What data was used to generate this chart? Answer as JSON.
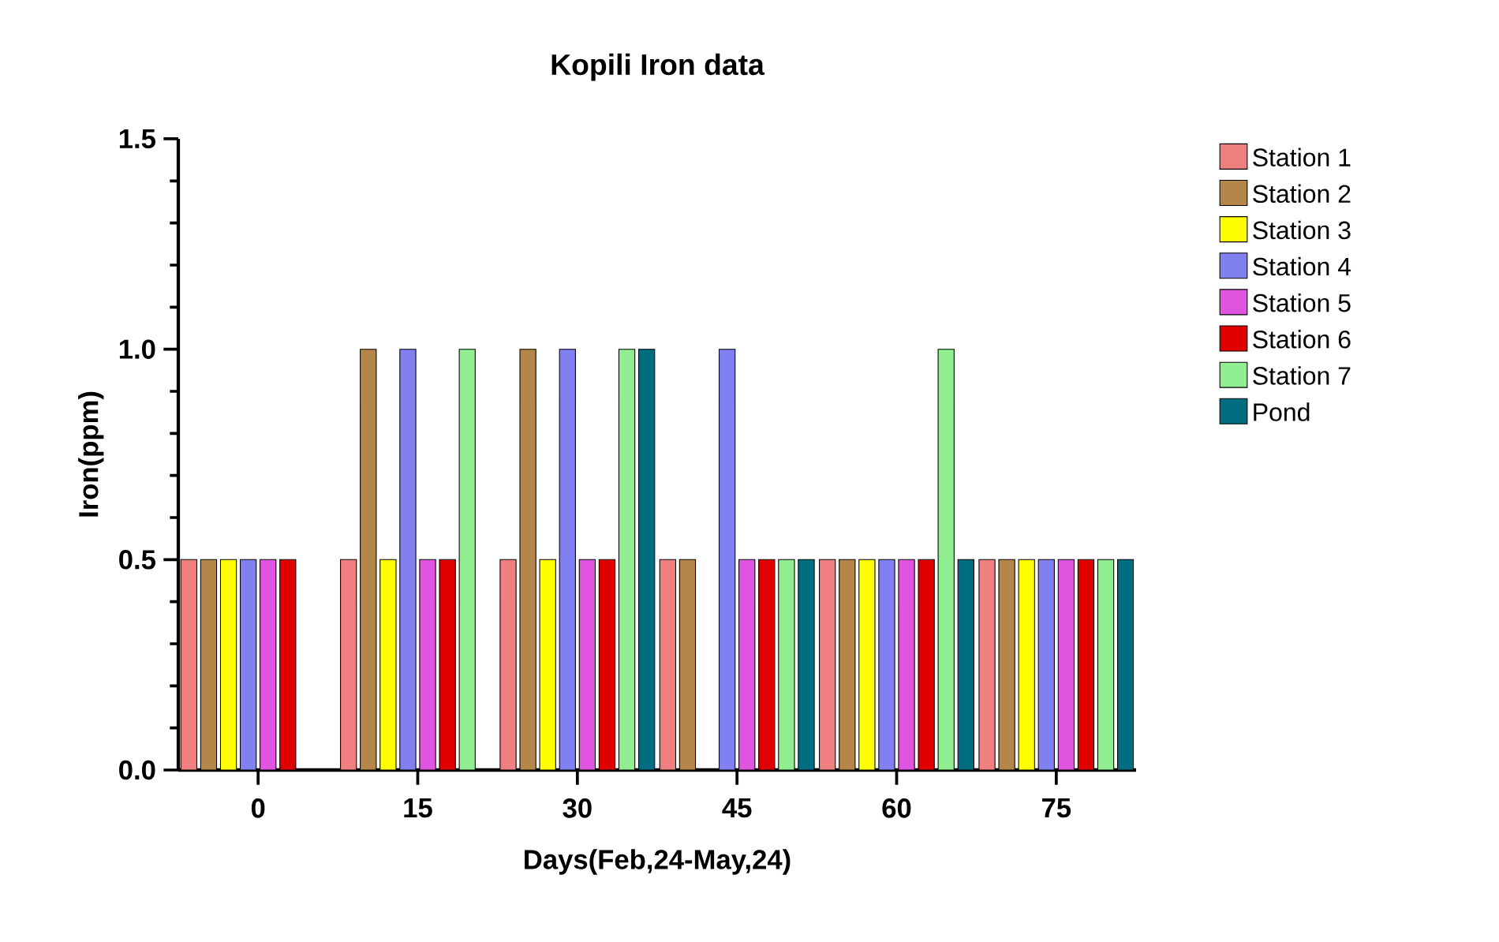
{
  "chart_data": {
    "type": "bar",
    "title": "Kopili Iron data",
    "xlabel": "Days(Feb,24-May,24)",
    "ylabel": "Iron(ppm)",
    "categories": [
      "0",
      "15",
      "30",
      "45",
      "60",
      "75"
    ],
    "series": [
      {
        "name": "Station 1",
        "color": "#f08080",
        "values": [
          0.5,
          0.5,
          0.5,
          0.5,
          0.5,
          0.5
        ]
      },
      {
        "name": "Station 2",
        "color": "#b5864a",
        "values": [
          0.5,
          1.0,
          1.0,
          0.5,
          0.5,
          0.5
        ]
      },
      {
        "name": "Station 3",
        "color": "#ffff00",
        "values": [
          0.5,
          0.5,
          0.5,
          0,
          0.5,
          0.5
        ]
      },
      {
        "name": "Station 4",
        "color": "#8080f0",
        "values": [
          0.5,
          1.0,
          1.0,
          1.0,
          0.5,
          0.5
        ]
      },
      {
        "name": "Station 5",
        "color": "#e055e0",
        "values": [
          0.5,
          0.5,
          0.5,
          0.5,
          0.5,
          0.5
        ]
      },
      {
        "name": "Station 6",
        "color": "#e00000",
        "values": [
          0.5,
          0.5,
          0.5,
          0.5,
          0.5,
          0.5
        ]
      },
      {
        "name": "Station 7",
        "color": "#90ee90",
        "values": [
          null,
          1.0,
          1.0,
          0.5,
          1.0,
          0.5
        ]
      },
      {
        "name": "Pond",
        "color": "#006d80",
        "values": [
          null,
          null,
          1.0,
          0.5,
          0.5,
          0.5
        ]
      }
    ],
    "ylim": [
      0,
      1.5
    ],
    "yticks": [
      {
        "value": 0,
        "label": "0.0"
      },
      {
        "value": 0.5,
        "label": "0.5"
      },
      {
        "value": 1.0,
        "label": "1.0"
      },
      {
        "value": 1.5,
        "label": "1.5"
      }
    ],
    "legend": "right"
  }
}
